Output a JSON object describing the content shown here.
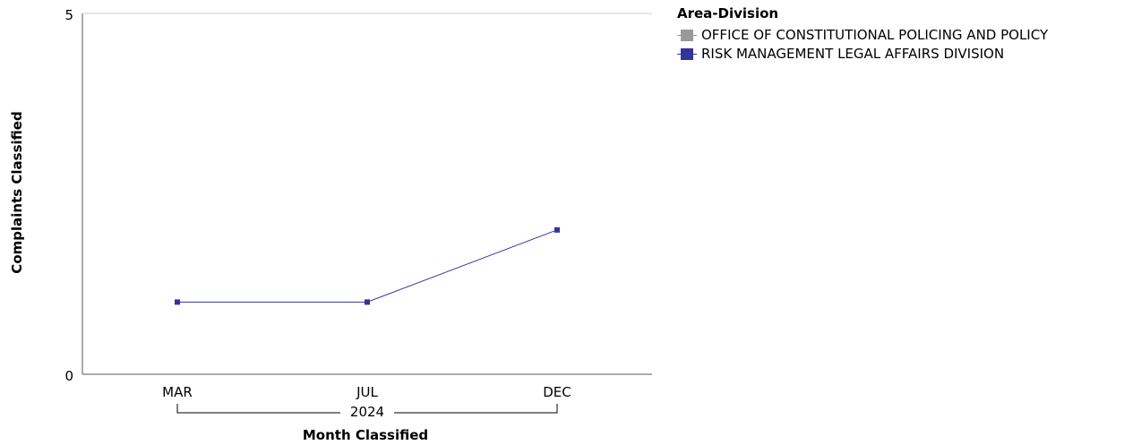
{
  "chart_data": {
    "type": "line",
    "xlabel": "Month Classified",
    "ylabel": "Complaints Classified",
    "ylim": [
      0,
      5
    ],
    "y_ticks": [
      "0",
      "5"
    ],
    "categories": [
      "MAR",
      "JUL",
      "DEC"
    ],
    "year_group": "2024",
    "grid": false,
    "legend": {
      "title": "Area-Division",
      "placement": "right"
    },
    "series": [
      {
        "name": "OFFICE OF CONSTITUTIONAL POLICING AND POLICY",
        "color": "#999999",
        "values": [
          null,
          null,
          null
        ]
      },
      {
        "name": "RISK MANAGEMENT LEGAL AFFAIRS DIVISION",
        "color": "#333399",
        "values": [
          1,
          1,
          2
        ]
      }
    ]
  }
}
